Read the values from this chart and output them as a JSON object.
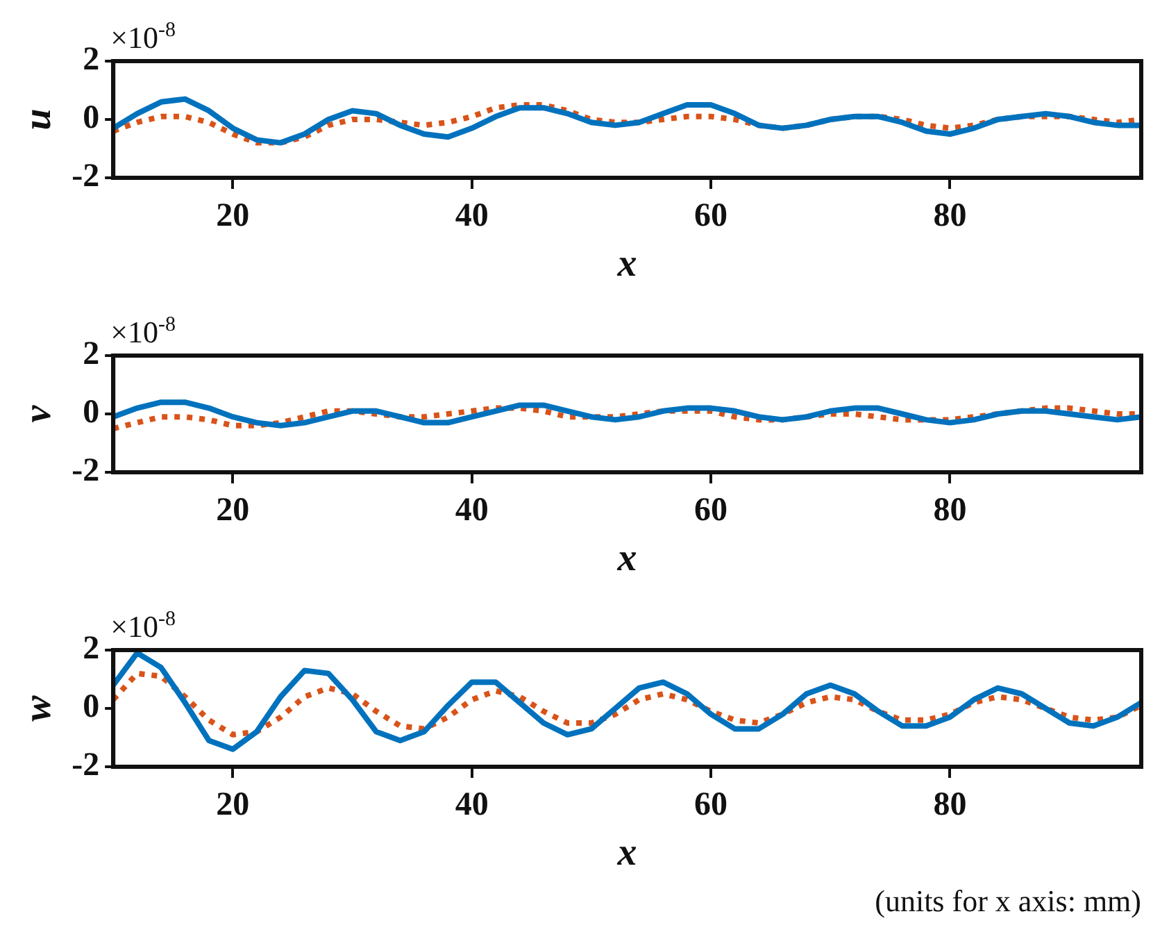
{
  "chart_data": [
    {
      "type": "line",
      "ylabel": "u",
      "xlabel": "x",
      "annotations": [
        "×10$^{-8}$"
      ],
      "x": [
        10,
        12,
        14,
        16,
        18,
        20,
        22,
        24,
        26,
        28,
        30,
        32,
        34,
        36,
        38,
        40,
        42,
        44,
        46,
        48,
        50,
        52,
        54,
        56,
        58,
        60,
        62,
        64,
        66,
        68,
        70,
        72,
        74,
        76,
        78,
        80,
        82,
        84,
        86,
        88,
        90,
        92,
        94,
        96
      ],
      "xlim": [
        10,
        96
      ],
      "xticks": [
        20,
        40,
        60,
        80
      ],
      "ylim": [
        -2,
        2
      ],
      "yticks": [
        -2,
        0,
        2
      ],
      "grid": false,
      "legend": false,
      "marker": "none",
      "series": [
        {
          "color": "#0072bd",
          "line_style": "solid",
          "values": [
            -0.3,
            0.2,
            0.6,
            0.7,
            0.3,
            -0.3,
            -0.7,
            -0.8,
            -0.5,
            0,
            0.3,
            0.2,
            -0.2,
            -0.5,
            -0.6,
            -0.3,
            0.1,
            0.4,
            0.4,
            0.2,
            -0.1,
            -0.2,
            -0.1,
            0.2,
            0.5,
            0.5,
            0.2,
            -0.2,
            -0.3,
            -0.2,
            0,
            0.1,
            0.1,
            -0.1,
            -0.4,
            -0.5,
            -0.3,
            0,
            0.1,
            0.2,
            0.1,
            -0.1,
            -0.2,
            -0.2
          ]
        },
        {
          "color": "#d95319",
          "line_style": "dotted",
          "values": [
            -0.4,
            -0.1,
            0.1,
            0.1,
            -0.1,
            -0.5,
            -0.8,
            -0.8,
            -0.6,
            -0.2,
            0,
            0,
            -0.1,
            -0.2,
            -0.1,
            0.1,
            0.4,
            0.5,
            0.5,
            0.3,
            0,
            -0.1,
            -0.1,
            0,
            0.1,
            0.1,
            0,
            -0.2,
            -0.3,
            -0.2,
            0,
            0.1,
            0.1,
            0,
            -0.2,
            -0.3,
            -0.2,
            0,
            0.1,
            0.1,
            0.1,
            0,
            -0.1,
            0
          ]
        }
      ]
    },
    {
      "type": "line",
      "ylabel": "v",
      "xlabel": "x",
      "annotations": [
        "×10$^{-8}$"
      ],
      "x": [
        10,
        12,
        14,
        16,
        18,
        20,
        22,
        24,
        26,
        28,
        30,
        32,
        34,
        36,
        38,
        40,
        42,
        44,
        46,
        48,
        50,
        52,
        54,
        56,
        58,
        60,
        62,
        64,
        66,
        68,
        70,
        72,
        74,
        76,
        78,
        80,
        82,
        84,
        86,
        88,
        90,
        92,
        94,
        96
      ],
      "xlim": [
        10,
        96
      ],
      "xticks": [
        20,
        40,
        60,
        80
      ],
      "ylim": [
        -2,
        2
      ],
      "yticks": [
        -2,
        0,
        2
      ],
      "grid": false,
      "legend": false,
      "marker": "none",
      "series": [
        {
          "color": "#0072bd",
          "line_style": "solid",
          "values": [
            -0.1,
            0.2,
            0.4,
            0.4,
            0.2,
            -0.1,
            -0.3,
            -0.4,
            -0.3,
            -0.1,
            0.1,
            0.1,
            -0.1,
            -0.3,
            -0.3,
            -0.1,
            0.1,
            0.3,
            0.3,
            0.1,
            -0.1,
            -0.2,
            -0.1,
            0.1,
            0.2,
            0.2,
            0.1,
            -0.1,
            -0.2,
            -0.1,
            0.1,
            0.2,
            0.2,
            0,
            -0.2,
            -0.3,
            -0.2,
            0,
            0.1,
            0.1,
            0,
            -0.1,
            -0.2,
            -0.1
          ]
        },
        {
          "color": "#d95319",
          "line_style": "dotted",
          "values": [
            -0.5,
            -0.3,
            -0.1,
            -0.1,
            -0.2,
            -0.4,
            -0.4,
            -0.3,
            -0.1,
            0.1,
            0.1,
            0,
            -0.1,
            -0.1,
            0,
            0.1,
            0.2,
            0.2,
            0.1,
            -0.1,
            -0.1,
            -0.1,
            0,
            0.1,
            0.1,
            0.1,
            -0.1,
            -0.2,
            -0.2,
            -0.1,
            0,
            0,
            -0.1,
            -0.2,
            -0.2,
            -0.2,
            -0.1,
            0,
            0.1,
            0.2,
            0.2,
            0.1,
            0,
            0
          ]
        }
      ]
    },
    {
      "type": "line",
      "ylabel": "w",
      "xlabel": "x",
      "annotations": [
        "×10$^{-8}$",
        "(units for x axis: mm)"
      ],
      "x": [
        10,
        12,
        14,
        16,
        18,
        20,
        22,
        24,
        26,
        28,
        30,
        32,
        34,
        36,
        38,
        40,
        42,
        44,
        46,
        48,
        50,
        52,
        54,
        56,
        58,
        60,
        62,
        64,
        66,
        68,
        70,
        72,
        74,
        76,
        78,
        80,
        82,
        84,
        86,
        88,
        90,
        92,
        94,
        96
      ],
      "xlim": [
        10,
        96
      ],
      "xticks": [
        20,
        40,
        60,
        80
      ],
      "ylim": [
        -2,
        2
      ],
      "yticks": [
        -2,
        0,
        2
      ],
      "grid": false,
      "legend": false,
      "marker": "none",
      "series": [
        {
          "color": "#0072bd",
          "line_style": "solid",
          "values": [
            0.8,
            1.9,
            1.4,
            0.2,
            -1.1,
            -1.4,
            -0.8,
            0.4,
            1.3,
            1.2,
            0.3,
            -0.8,
            -1.1,
            -0.8,
            0.1,
            0.9,
            0.9,
            0.2,
            -0.5,
            -0.9,
            -0.7,
            0,
            0.7,
            0.9,
            0.5,
            -0.2,
            -0.7,
            -0.7,
            -0.2,
            0.5,
            0.8,
            0.5,
            -0.1,
            -0.6,
            -0.6,
            -0.3,
            0.3,
            0.7,
            0.5,
            0,
            -0.5,
            -0.6,
            -0.3,
            0.2
          ]
        },
        {
          "color": "#d95319",
          "line_style": "dotted",
          "values": [
            0.3,
            1.2,
            1.1,
            0.4,
            -0.4,
            -0.9,
            -0.8,
            -0.3,
            0.4,
            0.7,
            0.5,
            -0.1,
            -0.6,
            -0.7,
            -0.3,
            0.3,
            0.6,
            0.4,
            -0.1,
            -0.5,
            -0.5,
            -0.2,
            0.3,
            0.5,
            0.3,
            -0.1,
            -0.4,
            -0.5,
            -0.2,
            0.2,
            0.4,
            0.3,
            -0.1,
            -0.4,
            -0.4,
            -0.2,
            0.2,
            0.4,
            0.3,
            0,
            -0.3,
            -0.4,
            -0.3,
            0.1
          ]
        }
      ]
    }
  ]
}
